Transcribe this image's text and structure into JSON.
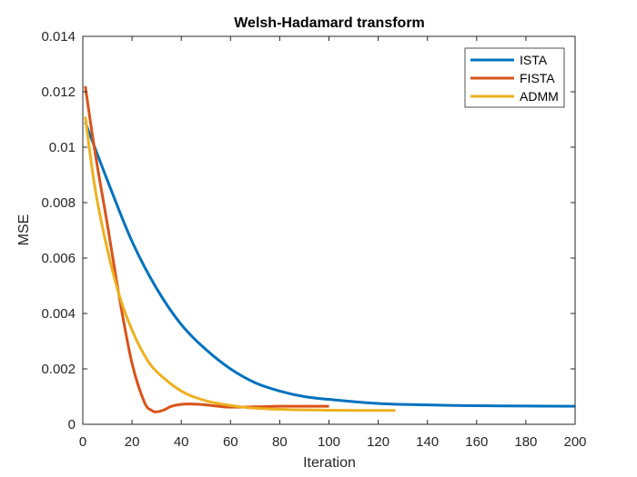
{
  "chart_data": {
    "type": "line",
    "title": "Welsh-Hadamard transform",
    "xlabel": "Iteration",
    "ylabel": "MSE",
    "xlim": [
      0,
      200
    ],
    "ylim": [
      0,
      0.014
    ],
    "xticks": [
      0,
      20,
      40,
      60,
      80,
      100,
      120,
      140,
      160,
      180,
      200
    ],
    "xtick_labels": [
      "0",
      "20",
      "40",
      "60",
      "80",
      "100",
      "120",
      "140",
      "160",
      "180",
      "200"
    ],
    "yticks": [
      0,
      0.002,
      0.004,
      0.006,
      0.008,
      0.01,
      0.012,
      0.014
    ],
    "ytick_labels": [
      "0",
      "0.002",
      "0.004",
      "0.006",
      "0.008",
      "0.01",
      "0.012",
      "0.014"
    ],
    "grid": false,
    "legend_position": "top-right",
    "series": [
      {
        "name": "ISTA",
        "color": "#0072BD",
        "x": [
          1,
          10,
          20,
          30,
          40,
          50,
          60,
          70,
          80,
          90,
          100,
          120,
          140,
          160,
          180,
          200
        ],
        "y": [
          0.0109,
          0.0088,
          0.0066,
          0.0049,
          0.0036,
          0.0027,
          0.002,
          0.0015,
          0.0012,
          0.001,
          0.0009,
          0.00075,
          0.0007,
          0.00067,
          0.00066,
          0.00065
        ]
      },
      {
        "name": "FISTA",
        "color": "#D95319",
        "x": [
          1,
          5,
          10,
          15,
          20,
          25,
          28,
          30,
          33,
          36,
          40,
          45,
          50,
          55,
          60,
          70,
          80,
          90,
          100
        ],
        "y": [
          0.0122,
          0.0098,
          0.0072,
          0.0045,
          0.0022,
          0.0008,
          0.0005,
          0.00045,
          0.00052,
          0.00065,
          0.00072,
          0.00073,
          0.0007,
          0.00065,
          0.00062,
          0.00063,
          0.00065,
          0.00065,
          0.00065
        ]
      },
      {
        "name": "ADMM",
        "color": "#EDB120",
        "x": [
          1,
          5,
          10,
          15,
          20,
          25,
          30,
          40,
          50,
          60,
          70,
          80,
          90,
          100,
          110,
          120,
          127
        ],
        "y": [
          0.0111,
          0.0085,
          0.0063,
          0.0046,
          0.0034,
          0.0025,
          0.0019,
          0.0012,
          0.00085,
          0.00068,
          0.00058,
          0.00054,
          0.00052,
          0.00051,
          0.0005,
          0.0005,
          0.0005
        ]
      }
    ]
  }
}
